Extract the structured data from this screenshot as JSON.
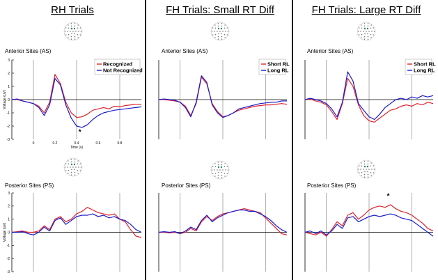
{
  "panels": [
    {
      "title": "RH Trials"
    },
    {
      "title": "FH Trials: Small RT Diff"
    },
    {
      "title": "FH Trials: Large RT Diff"
    }
  ],
  "colors": {
    "red": "#e0212b",
    "blue": "#1a1acc",
    "axis": "#000000",
    "vline": "#999999"
  },
  "site_labels": {
    "anterior": "Anterior Sites (AS)",
    "posterior": "Posterior Sites (PS)"
  },
  "chart_data": [
    {
      "id": "rh-anterior",
      "type": "line",
      "title": "RH Trials",
      "subtitle": "Anterior Sites (AS)",
      "ylabel": "Voltage (uV)",
      "xlabel": "Time (s)",
      "xlim": [
        -0.2,
        1.0
      ],
      "ylim": [
        -3,
        3
      ],
      "yticks": [
        3,
        2,
        1,
        0,
        -1,
        -2,
        -3
      ],
      "xticks": [
        0,
        0.2,
        0.4,
        0.6,
        0.8
      ],
      "vlines": [
        0,
        0.4,
        0.8
      ],
      "legend": [
        "Recognized",
        "Not Recognized"
      ],
      "annotation": "*",
      "annotation_x": 0.43,
      "series": [
        {
          "name": "Recognized",
          "color": "red",
          "x": [
            -0.2,
            -0.15,
            -0.1,
            -0.05,
            0,
            0.05,
            0.1,
            0.15,
            0.2,
            0.25,
            0.3,
            0.35,
            0.4,
            0.45,
            0.5,
            0.55,
            0.6,
            0.65,
            0.7,
            0.75,
            0.8,
            0.85,
            0.9,
            0.95,
            1.0
          ],
          "y": [
            0,
            0,
            -0.1,
            -0.2,
            -0.3,
            -0.5,
            -1,
            -0.2,
            1.9,
            1.2,
            -0.2,
            -1,
            -1.35,
            -1.3,
            -1.1,
            -0.8,
            -0.7,
            -0.6,
            -0.7,
            -0.5,
            -0.55,
            -0.45,
            -0.4,
            -0.35,
            -0.35
          ]
        },
        {
          "name": "Not Recognized",
          "color": "blue",
          "x": [
            -0.2,
            -0.15,
            -0.1,
            -0.05,
            0,
            0.05,
            0.1,
            0.15,
            0.2,
            0.25,
            0.3,
            0.35,
            0.4,
            0.45,
            0.5,
            0.55,
            0.6,
            0.65,
            0.7,
            0.75,
            0.8,
            0.85,
            0.9,
            0.95,
            1.0
          ],
          "y": [
            0,
            0.05,
            -0.1,
            -0.2,
            -0.3,
            -0.6,
            -1.2,
            -0.4,
            1.6,
            1.1,
            -0.4,
            -1.4,
            -2,
            -2.1,
            -1.9,
            -1.5,
            -1.2,
            -1,
            -0.9,
            -0.8,
            -0.75,
            -0.7,
            -0.65,
            -0.6,
            -0.55
          ]
        }
      ]
    },
    {
      "id": "rh-posterior",
      "type": "line",
      "title": "RH Trials",
      "subtitle": "Posterior Sites (PS)",
      "ylabel": "Voltage (uV)",
      "xlim": [
        -0.2,
        1.0
      ],
      "ylim": [
        -3,
        3
      ],
      "yticks": [
        3,
        2,
        1,
        0,
        -1,
        -2,
        -3
      ],
      "vlines": [
        0,
        0.4,
        0.8
      ],
      "series": [
        {
          "name": "Recognized",
          "color": "red",
          "x": [
            -0.2,
            -0.15,
            -0.1,
            -0.05,
            0,
            0.05,
            0.1,
            0.15,
            0.2,
            0.25,
            0.3,
            0.35,
            0.4,
            0.45,
            0.5,
            0.55,
            0.6,
            0.65,
            0.7,
            0.75,
            0.8,
            0.85,
            0.9,
            0.95,
            1.0
          ],
          "y": [
            0,
            0.05,
            0.1,
            0,
            0,
            0.1,
            0.5,
            0.2,
            1,
            1.2,
            0.8,
            1,
            1.4,
            1.6,
            1.9,
            1.7,
            1.5,
            1.4,
            1.3,
            1.4,
            1,
            0.8,
            0.2,
            -0.3,
            -0.4
          ]
        },
        {
          "name": "Not Recognized",
          "color": "blue",
          "x": [
            -0.2,
            -0.15,
            -0.1,
            -0.05,
            0,
            0.05,
            0.1,
            0.15,
            0.2,
            0.25,
            0.3,
            0.35,
            0.4,
            0.45,
            0.5,
            0.55,
            0.6,
            0.65,
            0.7,
            0.75,
            0.8,
            0.85,
            0.9,
            0.95,
            1.0
          ],
          "y": [
            0,
            0,
            0.05,
            -0.1,
            -0.2,
            0,
            0.4,
            0.1,
            0.9,
            1.1,
            0.6,
            0.9,
            1.2,
            1.3,
            1.3,
            1.4,
            1.2,
            1.3,
            1.1,
            1.2,
            1,
            0.9,
            0.6,
            0.2,
            0
          ]
        }
      ]
    },
    {
      "id": "fh-small-anterior",
      "type": "line",
      "title": "FH Trials: Small RT Diff",
      "subtitle": "Anterior Sites (AS)",
      "xlim": [
        -0.2,
        1.0
      ],
      "ylim": [
        -3,
        3
      ],
      "vlines": [
        0,
        0.4,
        0.8
      ],
      "legend": [
        "Short RL",
        "Long RL"
      ],
      "series": [
        {
          "name": "Short RL",
          "color": "red",
          "x": [
            -0.2,
            -0.15,
            -0.1,
            -0.05,
            0,
            0.05,
            0.1,
            0.15,
            0.2,
            0.25,
            0.3,
            0.35,
            0.4,
            0.45,
            0.5,
            0.55,
            0.6,
            0.65,
            0.7,
            0.75,
            0.8,
            0.85,
            0.9,
            0.95,
            1.0
          ],
          "y": [
            0,
            0,
            -0.05,
            -0.1,
            -0.2,
            -0.5,
            -1.2,
            -0.3,
            1.7,
            1.2,
            -0.3,
            -0.9,
            -1.3,
            -1.2,
            -1,
            -0.8,
            -0.7,
            -0.6,
            -0.5,
            -0.45,
            -0.4,
            -0.4,
            -0.35,
            -0.3,
            -0.35
          ]
        },
        {
          "name": "Long RL",
          "color": "blue",
          "x": [
            -0.2,
            -0.15,
            -0.1,
            -0.05,
            0,
            0.05,
            0.1,
            0.15,
            0.2,
            0.25,
            0.3,
            0.35,
            0.4,
            0.45,
            0.5,
            0.55,
            0.6,
            0.65,
            0.7,
            0.75,
            0.8,
            0.85,
            0.9,
            0.95,
            1.0
          ],
          "y": [
            0,
            0.05,
            0,
            -0.05,
            -0.2,
            -0.6,
            -1.3,
            -0.2,
            1.8,
            1.3,
            -0.4,
            -1,
            -1.35,
            -1.2,
            -1,
            -0.7,
            -0.6,
            -0.5,
            -0.4,
            -0.3,
            -0.25,
            -0.2,
            -0.2,
            -0.1,
            -0.1
          ]
        }
      ]
    },
    {
      "id": "fh-small-posterior",
      "type": "line",
      "title": "FH Trials: Small RT Diff",
      "subtitle": "Posterior Sites (PS)",
      "xlim": [
        -0.2,
        1.0
      ],
      "ylim": [
        -3,
        3
      ],
      "vlines": [
        0,
        0.4,
        0.8
      ],
      "series": [
        {
          "name": "Short RL",
          "color": "red",
          "x": [
            -0.2,
            -0.15,
            -0.1,
            -0.05,
            0,
            0.05,
            0.1,
            0.15,
            0.2,
            0.25,
            0.3,
            0.35,
            0.4,
            0.45,
            0.5,
            0.55,
            0.6,
            0.65,
            0.7,
            0.75,
            0.8,
            0.85,
            0.9,
            0.95,
            1.0
          ],
          "y": [
            0,
            0,
            -0.05,
            0,
            -0.1,
            0,
            0.3,
            0.1,
            0.8,
            1.2,
            0.9,
            1.2,
            1.4,
            1.5,
            1.6,
            1.7,
            1.8,
            1.7,
            1.6,
            1.5,
            1.1,
            0.7,
            0.3,
            -0.1,
            -0.2
          ]
        },
        {
          "name": "Long RL",
          "color": "blue",
          "x": [
            -0.2,
            -0.15,
            -0.1,
            -0.05,
            0,
            0.05,
            0.1,
            0.15,
            0.2,
            0.25,
            0.3,
            0.35,
            0.4,
            0.45,
            0.5,
            0.55,
            0.6,
            0.65,
            0.7,
            0.75,
            0.8,
            0.85,
            0.9,
            0.95,
            1.0
          ],
          "y": [
            0,
            0.05,
            0,
            0.05,
            -0.1,
            0.1,
            0.4,
            0.2,
            0.9,
            1.3,
            0.8,
            1.1,
            1.3,
            1.5,
            1.6,
            1.7,
            1.7,
            1.6,
            1.6,
            1.4,
            1.2,
            0.9,
            0.5,
            0.2,
            0
          ]
        }
      ]
    },
    {
      "id": "fh-large-anterior",
      "type": "line",
      "title": "FH Trials: Large RT Diff",
      "subtitle": "Anterior Sites (AS)",
      "xlim": [
        -0.2,
        1.0
      ],
      "ylim": [
        -3,
        3
      ],
      "vlines": [
        0,
        0.4,
        0.8
      ],
      "legend": [
        "Short RL",
        "Long RL"
      ],
      "series": [
        {
          "name": "Short RL",
          "color": "red",
          "x": [
            -0.2,
            -0.15,
            -0.1,
            -0.05,
            0,
            0.05,
            0.1,
            0.15,
            0.2,
            0.25,
            0.3,
            0.35,
            0.4,
            0.45,
            0.5,
            0.55,
            0.6,
            0.65,
            0.7,
            0.75,
            0.8,
            0.85,
            0.9,
            0.95,
            1.0
          ],
          "y": [
            0,
            0.05,
            -0.1,
            -0.2,
            -0.4,
            -0.9,
            -1.5,
            -0.3,
            1.6,
            1,
            -0.4,
            -1.2,
            -1.6,
            -1.7,
            -1.4,
            -1.1,
            -0.8,
            -0.7,
            -0.5,
            -0.4,
            -0.5,
            -0.3,
            -0.4,
            -0.2,
            -0.3
          ]
        },
        {
          "name": "Long RL",
          "color": "blue",
          "x": [
            -0.2,
            -0.15,
            -0.1,
            -0.05,
            0,
            0.05,
            0.1,
            0.15,
            0.2,
            0.25,
            0.3,
            0.35,
            0.4,
            0.45,
            0.5,
            0.55,
            0.6,
            0.65,
            0.7,
            0.75,
            0.8,
            0.85,
            0.9,
            0.95,
            1.0
          ],
          "y": [
            0,
            0.1,
            0,
            -0.1,
            -0.3,
            -0.7,
            -1.3,
            -0.2,
            2.1,
            1.4,
            -0.3,
            -0.8,
            -1.3,
            -1.5,
            -1.1,
            -0.6,
            -0.3,
            0,
            0.1,
            0,
            0.2,
            0.1,
            0.3,
            0.2,
            0.3
          ]
        }
      ]
    },
    {
      "id": "fh-large-posterior",
      "type": "line",
      "title": "FH Trials: Large RT Diff",
      "subtitle": "Posterior Sites (PS)",
      "xlim": [
        -0.2,
        1.0
      ],
      "ylim": [
        -3,
        3
      ],
      "vlines": [
        0,
        0.4,
        0.8
      ],
      "annotation": "*",
      "annotation_x": 0.58,
      "series": [
        {
          "name": "Short RL",
          "color": "red",
          "x": [
            -0.2,
            -0.15,
            -0.1,
            -0.05,
            0,
            0.05,
            0.1,
            0.15,
            0.2,
            0.25,
            0.3,
            0.35,
            0.4,
            0.45,
            0.5,
            0.55,
            0.6,
            0.65,
            0.7,
            0.75,
            0.8,
            0.85,
            0.9,
            0.95,
            1.0
          ],
          "y": [
            0,
            -0.1,
            -0.2,
            0,
            -0.3,
            0.2,
            0.8,
            0.5,
            1.3,
            1.5,
            1,
            1.3,
            1.7,
            1.9,
            2,
            1.9,
            2.1,
            1.8,
            1.6,
            1.5,
            1.3,
            1,
            0.7,
            0.3,
            0.1
          ]
        },
        {
          "name": "Long RL",
          "color": "blue",
          "x": [
            -0.2,
            -0.15,
            -0.1,
            -0.05,
            0,
            0.05,
            0.1,
            0.15,
            0.2,
            0.25,
            0.3,
            0.35,
            0.4,
            0.45,
            0.5,
            0.55,
            0.6,
            0.65,
            0.7,
            0.75,
            0.8,
            0.85,
            0.9,
            0.95,
            1.0
          ],
          "y": [
            0,
            0.1,
            -0.1,
            0.1,
            -0.2,
            0.1,
            0.6,
            0.3,
            1.1,
            1.2,
            0.8,
            1,
            1.2,
            1.3,
            1.2,
            1.3,
            1.4,
            1.3,
            1.1,
            1,
            0.9,
            0.6,
            0.3,
            0,
            -0.3
          ]
        }
      ]
    }
  ]
}
